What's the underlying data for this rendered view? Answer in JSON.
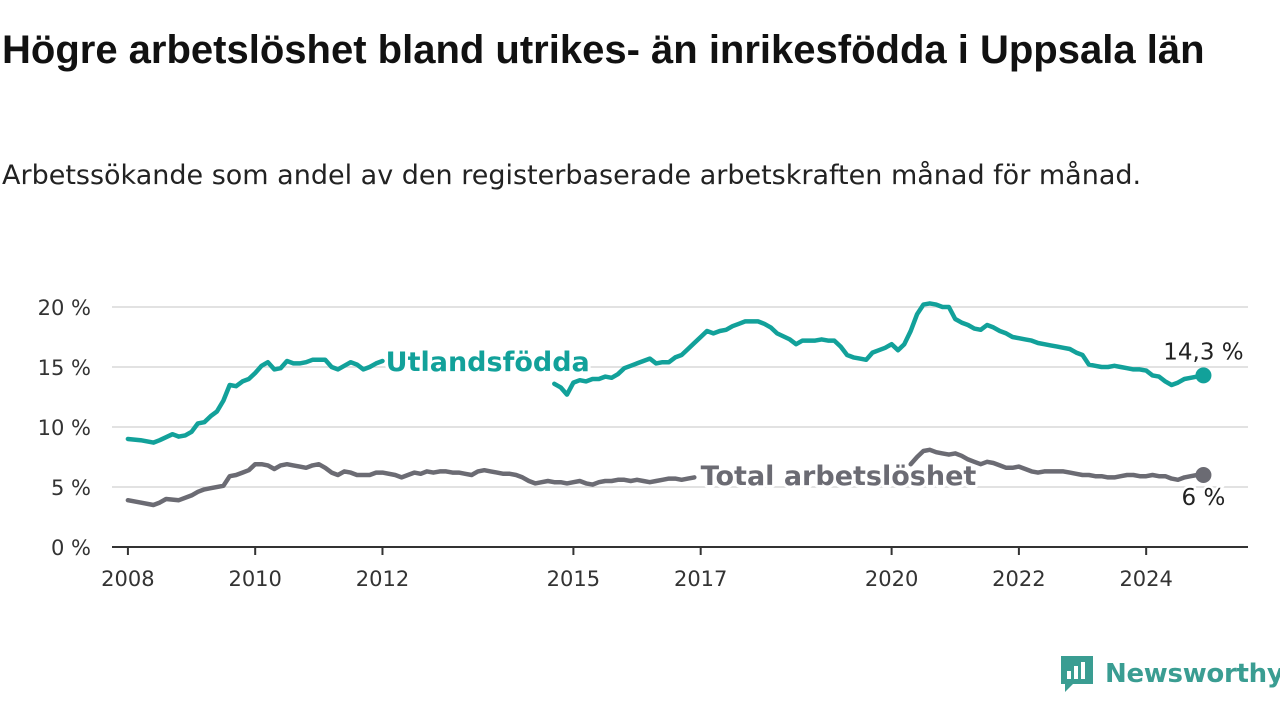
{
  "title": "Högre arbetslöshet bland utrikes- än inrikesfödda i Uppsala län",
  "subtitle": "Arbetssökande som andel av den registerbaserade arbetskraften månad för månad.",
  "brand": {
    "name": "Newsworthy",
    "color": "#3a9d92",
    "icon": "newsworthy-logo-icon"
  },
  "chart_data": {
    "type": "line",
    "x_axis": {
      "type": "time",
      "range": [
        2007.75,
        2025.6
      ],
      "tick_labels": [
        "2008",
        "2010",
        "2012",
        "2015",
        "2017",
        "2020",
        "2022",
        "2024"
      ],
      "tick_values": [
        2008,
        2010,
        2012,
        2015,
        2017,
        2020,
        2022,
        2024
      ]
    },
    "y_axis": {
      "range": [
        0,
        20
      ],
      "ticks": [
        0,
        5,
        10,
        15,
        20
      ],
      "tick_labels": [
        "0 %",
        "5 %",
        "10 %",
        "15 %",
        "20 %"
      ],
      "grid": true
    },
    "series": [
      {
        "name": "Utlandsfödda",
        "color": "#12a19a",
        "end_label": "14,3 %",
        "label_position": [
          2012.05,
          15.5
        ],
        "segments": [
          {
            "x": [
              2008.0,
              2008.2,
              2008.4,
              2008.5,
              2008.7,
              2008.8,
              2008.9,
              2009.0,
              2009.1,
              2009.2,
              2009.3,
              2009.4,
              2009.5,
              2009.6,
              2009.7,
              2009.8,
              2009.9,
              2010.0,
              2010.1,
              2010.2,
              2010.3,
              2010.4,
              2010.5,
              2010.6,
              2010.7,
              2010.8,
              2010.9,
              2011.0,
              2011.1,
              2011.2,
              2011.3,
              2011.5,
              2011.6,
              2011.7,
              2011.8,
              2011.9,
              2012.0
            ],
            "y": [
              9.0,
              8.9,
              8.7,
              8.9,
              9.4,
              9.2,
              9.3,
              9.6,
              10.3,
              10.4,
              10.9,
              11.3,
              12.2,
              13.5,
              13.4,
              13.8,
              14.0,
              14.5,
              15.1,
              15.4,
              14.8,
              14.9,
              15.5,
              15.3,
              15.3,
              15.4,
              15.6,
              15.6,
              15.6,
              15.0,
              14.8,
              15.4,
              15.2,
              14.8,
              15.0,
              15.3,
              15.5
            ]
          },
          {
            "x": [
              2014.7,
              2014.8,
              2014.9,
              2015.0,
              2015.1,
              2015.2,
              2015.3,
              2015.4,
              2015.5,
              2015.6,
              2015.7,
              2015.8,
              2015.9,
              2016.0,
              2016.1,
              2016.2,
              2016.3,
              2016.4,
              2016.5,
              2016.6,
              2016.7,
              2016.8,
              2016.9,
              2017.0,
              2017.1,
              2017.2,
              2017.3,
              2017.4,
              2017.5,
              2017.6,
              2017.7,
              2017.8,
              2017.9,
              2018.0,
              2018.1,
              2018.2,
              2018.4,
              2018.5,
              2018.6,
              2018.8,
              2018.9,
              2019.0,
              2019.1,
              2019.2,
              2019.3,
              2019.4,
              2019.5,
              2019.6,
              2019.7,
              2019.8,
              2019.9,
              2020.0,
              2020.1,
              2020.2,
              2020.3,
              2020.4,
              2020.5,
              2020.6,
              2020.7,
              2020.8,
              2020.9,
              2021.0,
              2021.1,
              2021.2,
              2021.3,
              2021.4,
              2021.5,
              2021.6,
              2021.7,
              2021.8,
              2021.9,
              2022.0,
              2022.1,
              2022.2,
              2022.3,
              2022.4,
              2022.5,
              2022.6,
              2022.7,
              2022.8,
              2022.9,
              2023.0,
              2023.1,
              2023.2,
              2023.3,
              2023.4,
              2023.5,
              2023.6,
              2023.7,
              2023.8,
              2023.9,
              2024.0,
              2024.1,
              2024.2,
              2024.3,
              2024.4,
              2024.5,
              2024.6,
              2024.7,
              2024.8,
              2024.9
            ],
            "y": [
              13.6,
              13.3,
              12.7,
              13.7,
              13.9,
              13.8,
              14.0,
              14.0,
              14.2,
              14.1,
              14.4,
              14.9,
              15.1,
              15.3,
              15.5,
              15.7,
              15.3,
              15.4,
              15.4,
              15.8,
              16.0,
              16.5,
              17.0,
              17.5,
              18.0,
              17.8,
              18.0,
              18.1,
              18.4,
              18.6,
              18.8,
              18.8,
              18.8,
              18.6,
              18.3,
              17.8,
              17.3,
              16.9,
              17.2,
              17.2,
              17.3,
              17.2,
              17.2,
              16.7,
              16.0,
              15.8,
              15.7,
              15.6,
              16.2,
              16.4,
              16.6,
              16.9,
              16.4,
              16.9,
              18.0,
              19.4,
              20.2,
              20.3,
              20.2,
              20.0,
              20.0,
              19.0,
              18.7,
              18.5,
              18.2,
              18.1,
              18.5,
              18.3,
              18.0,
              17.8,
              17.5,
              17.4,
              17.3,
              17.2,
              17.0,
              16.9,
              16.8,
              16.7,
              16.6,
              16.5,
              16.2,
              16.0,
              15.2,
              15.1,
              15.0,
              15.0,
              15.1,
              15.0,
              14.9,
              14.8,
              14.8,
              14.7,
              14.3,
              14.2,
              13.8,
              13.5,
              13.7,
              14.0,
              14.1,
              14.2,
              14.3
            ]
          }
        ]
      },
      {
        "name": "Total arbetslöshet",
        "color": "#6b6b73",
        "end_label": "6 %",
        "label_position": [
          2017.0,
          6.0
        ],
        "segments": [
          {
            "x": [
              2008.0,
              2008.2,
              2008.4,
              2008.5,
              2008.6,
              2008.8,
              2009.0,
              2009.1,
              2009.2,
              2009.3,
              2009.5,
              2009.6,
              2009.7,
              2009.8,
              2009.9,
              2010.0,
              2010.1,
              2010.2,
              2010.3,
              2010.4,
              2010.5,
              2010.6,
              2010.7,
              2010.8,
              2010.9,
              2011.0,
              2011.1,
              2011.2,
              2011.3,
              2011.4,
              2011.5,
              2011.6,
              2011.7,
              2011.8,
              2011.9,
              2012.0,
              2012.2,
              2012.3,
              2012.4,
              2012.5,
              2012.6,
              2012.7,
              2012.8,
              2012.9,
              2013.0,
              2013.1,
              2013.2,
              2013.3,
              2013.4,
              2013.5,
              2013.6,
              2013.7,
              2013.8,
              2013.9,
              2014.0,
              2014.1,
              2014.2,
              2014.3,
              2014.4,
              2014.5,
              2014.6,
              2014.7,
              2014.8,
              2014.9,
              2015.0,
              2015.1,
              2015.2,
              2015.3,
              2015.4,
              2015.5,
              2015.6,
              2015.7,
              2015.8,
              2015.9,
              2016.0,
              2016.1,
              2016.2,
              2016.3,
              2016.4,
              2016.5,
              2016.6,
              2016.7,
              2016.8,
              2016.9
            ],
            "y": [
              3.9,
              3.7,
              3.5,
              3.7,
              4.0,
              3.9,
              4.3,
              4.6,
              4.8,
              4.9,
              5.1,
              5.9,
              6.0,
              6.2,
              6.4,
              6.9,
              6.9,
              6.8,
              6.5,
              6.8,
              6.9,
              6.8,
              6.7,
              6.6,
              6.8,
              6.9,
              6.6,
              6.2,
              6.0,
              6.3,
              6.2,
              6.0,
              6.0,
              6.0,
              6.2,
              6.2,
              6.0,
              5.8,
              6.0,
              6.2,
              6.1,
              6.3,
              6.2,
              6.3,
              6.3,
              6.2,
              6.2,
              6.1,
              6.0,
              6.3,
              6.4,
              6.3,
              6.2,
              6.1,
              6.1,
              6.0,
              5.8,
              5.5,
              5.3,
              5.4,
              5.5,
              5.4,
              5.4,
              5.3,
              5.4,
              5.5,
              5.3,
              5.2,
              5.4,
              5.5,
              5.5,
              5.6,
              5.6,
              5.5,
              5.6,
              5.5,
              5.4,
              5.5,
              5.6,
              5.7,
              5.7,
              5.6,
              5.7,
              5.8
            ]
          },
          {
            "x": [
              2020.3,
              2020.4,
              2020.5,
              2020.6,
              2020.7,
              2020.8,
              2020.9,
              2021.0,
              2021.1,
              2021.2,
              2021.3,
              2021.4,
              2021.5,
              2021.6,
              2021.7,
              2021.8,
              2021.9,
              2022.0,
              2022.1,
              2022.2,
              2022.3,
              2022.4,
              2022.5,
              2022.6,
              2022.7,
              2022.8,
              2022.9,
              2023.0,
              2023.1,
              2023.2,
              2023.3,
              2023.4,
              2023.5,
              2023.6,
              2023.7,
              2023.8,
              2023.9,
              2024.0,
              2024.1,
              2024.2,
              2024.3,
              2024.4,
              2024.5,
              2024.6,
              2024.7,
              2024.8,
              2024.9
            ],
            "y": [
              6.9,
              7.5,
              8.0,
              8.1,
              7.9,
              7.8,
              7.7,
              7.8,
              7.6,
              7.3,
              7.1,
              6.9,
              7.1,
              7.0,
              6.8,
              6.6,
              6.6,
              6.7,
              6.5,
              6.3,
              6.2,
              6.3,
              6.3,
              6.3,
              6.3,
              6.2,
              6.1,
              6.0,
              6.0,
              5.9,
              5.9,
              5.8,
              5.8,
              5.9,
              6.0,
              6.0,
              5.9,
              5.9,
              6.0,
              5.9,
              5.9,
              5.7,
              5.6,
              5.8,
              5.9,
              6.0,
              6.0
            ]
          }
        ]
      }
    ]
  }
}
